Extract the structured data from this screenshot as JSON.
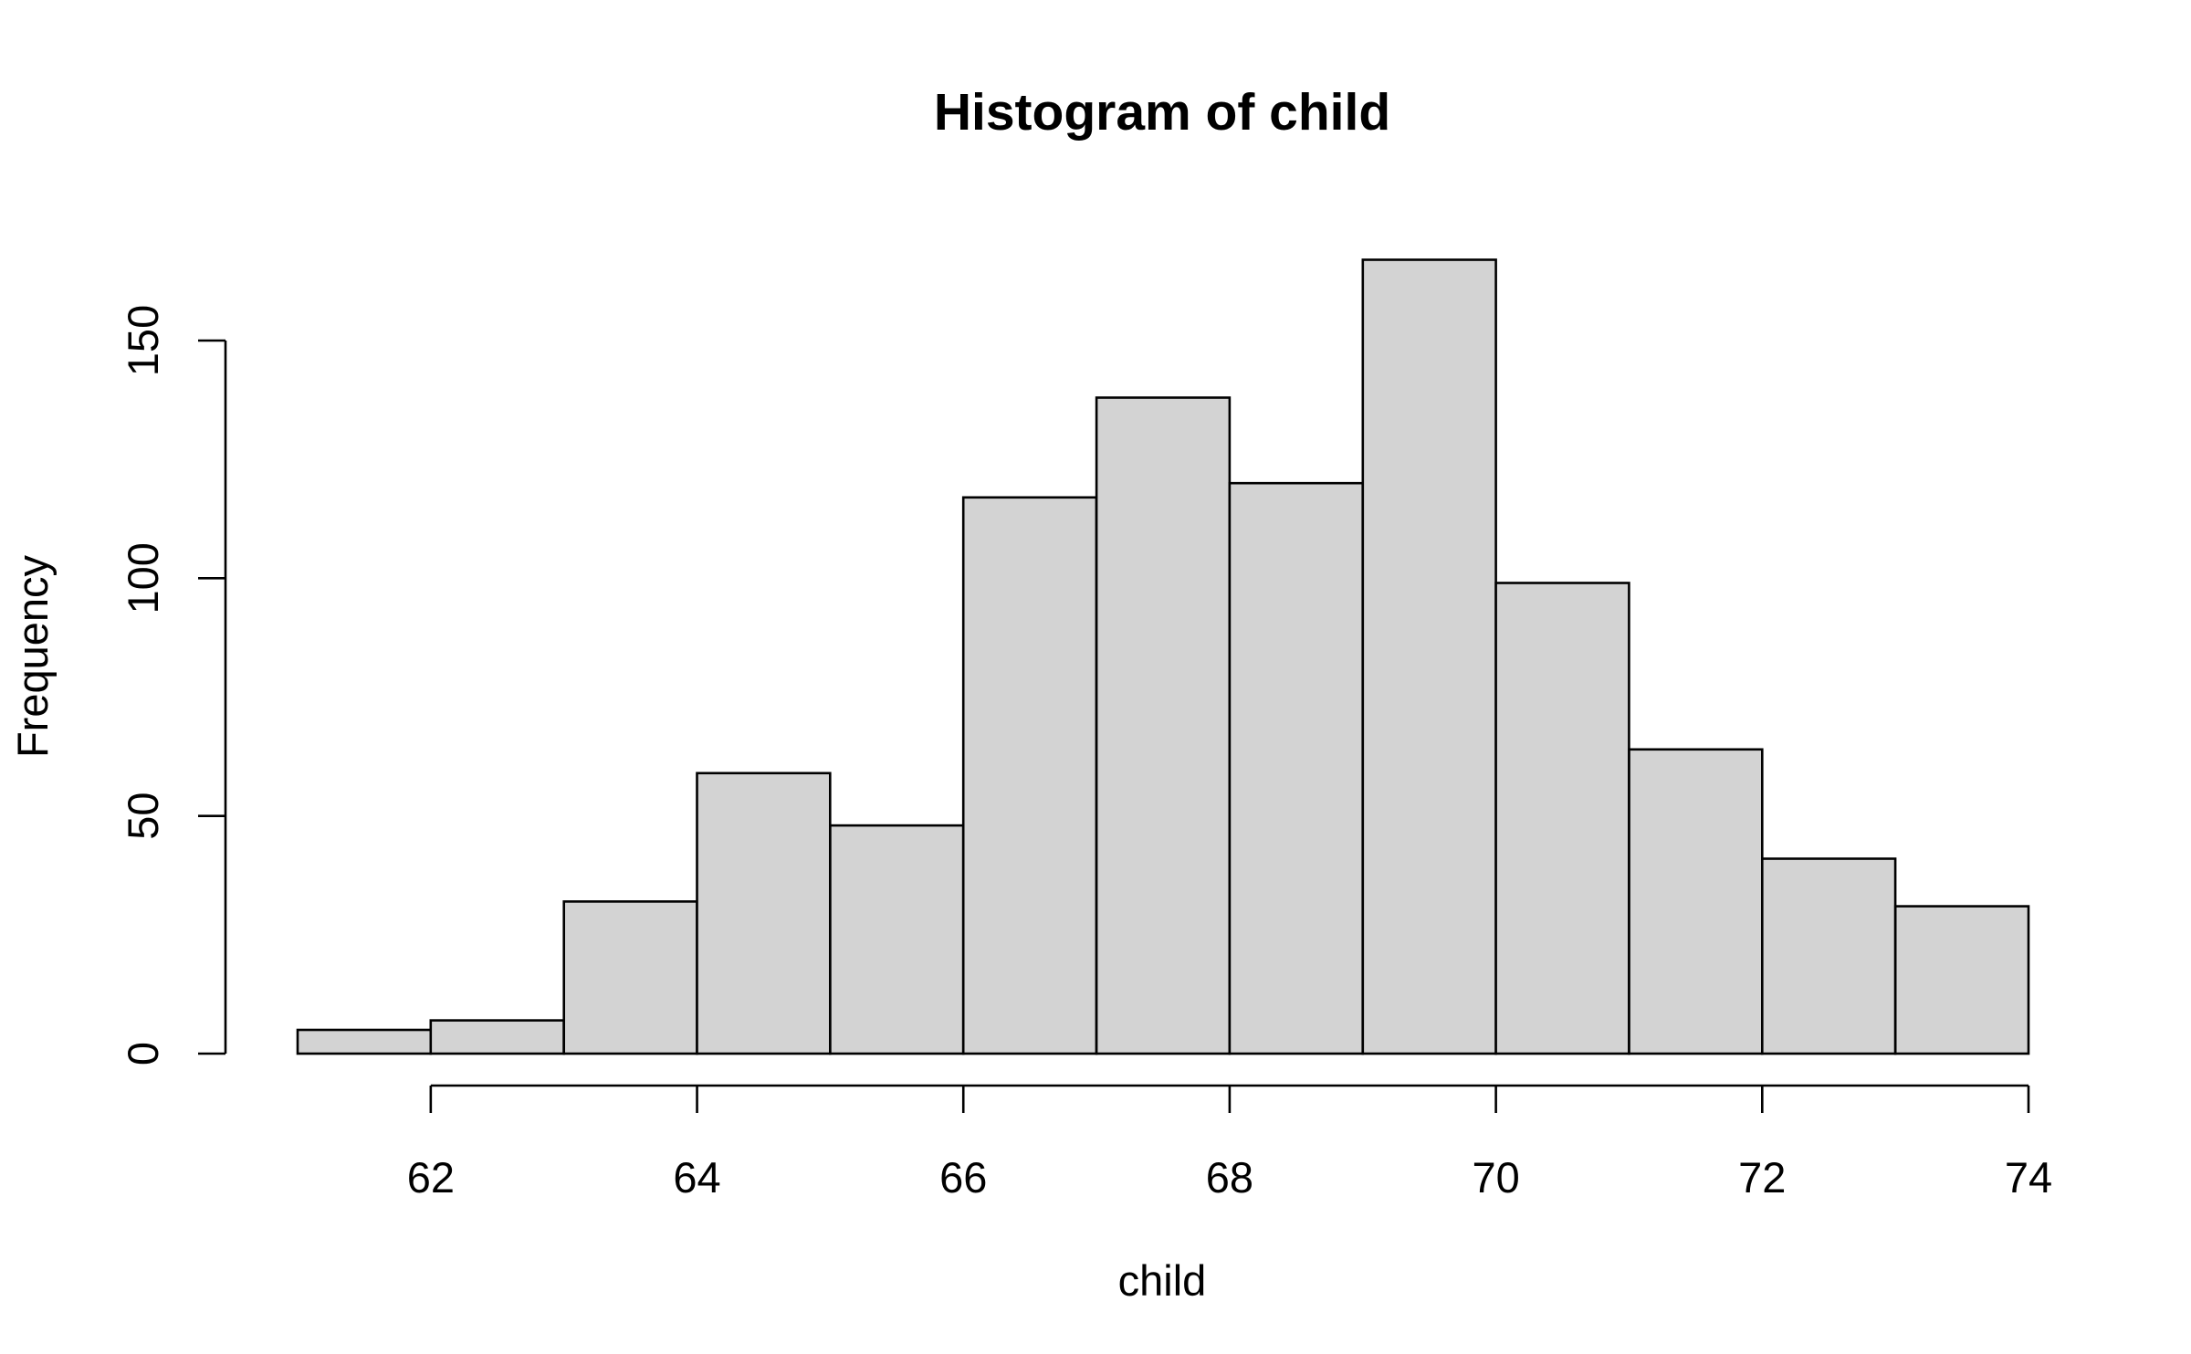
{
  "chart_data": {
    "type": "bar",
    "title": "Histogram of child",
    "xlabel": "child",
    "ylabel": "Frequency",
    "bar_color": "#d3d3d3",
    "edge_color": "#000000",
    "bins": [
      {
        "from": 61,
        "to": 62,
        "count": 5
      },
      {
        "from": 62,
        "to": 63,
        "count": 7
      },
      {
        "from": 63,
        "to": 64,
        "count": 32
      },
      {
        "from": 64,
        "to": 65,
        "count": 59
      },
      {
        "from": 65,
        "to": 66,
        "count": 48
      },
      {
        "from": 66,
        "to": 67,
        "count": 117
      },
      {
        "from": 67,
        "to": 68,
        "count": 138
      },
      {
        "from": 68,
        "to": 69,
        "count": 120
      },
      {
        "from": 69,
        "to": 70,
        "count": 167
      },
      {
        "from": 70,
        "to": 71,
        "count": 99
      },
      {
        "from": 71,
        "to": 72,
        "count": 64
      },
      {
        "from": 72,
        "to": 73,
        "count": 41
      },
      {
        "from": 73,
        "to": 74,
        "count": 31
      }
    ],
    "x_ticks": [
      62,
      64,
      66,
      68,
      70,
      72,
      74
    ],
    "y_ticks": [
      0,
      50,
      100,
      150
    ],
    "xlim": [
      61,
      74
    ],
    "ylim": [
      0,
      167
    ],
    "grid": false,
    "legend": "none"
  }
}
